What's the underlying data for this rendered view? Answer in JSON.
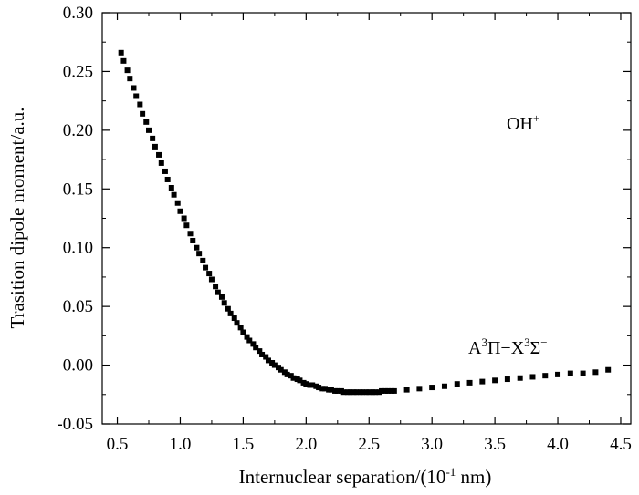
{
  "chart_data": {
    "type": "scatter",
    "xlabel": "Internuclear separation/(10",
    "xlabel_exp": "-1",
    "xlabel_unit": " nm)",
    "ylabel": "Trasition dipole moment/a.u.",
    "xlim": [
      0.38,
      4.58
    ],
    "ylim": [
      -0.05,
      0.3
    ],
    "xticks": [
      "0.5",
      "1.0",
      "1.5",
      "2.0",
      "2.5",
      "3.0",
      "3.5",
      "4.0",
      "4.5"
    ],
    "yticks": [
      "0.30",
      "0.25",
      "0.20",
      "0.15",
      "0.10",
      "0.05",
      "0.00",
      "-0.05"
    ],
    "grid": false,
    "annotations": {
      "molecule": "OH",
      "molecule_sup": "+",
      "transition": {
        "a": "A",
        "a_sup": "3",
        "pi": "Π",
        "dash": "−",
        "x": "X",
        "x_sup": "3",
        "sigma": "Σ",
        "sigma_sup": "−"
      }
    },
    "series": [
      {
        "marker": "square",
        "color": "#000000",
        "x": [
          0.53,
          0.55,
          0.58,
          0.6,
          0.63,
          0.65,
          0.68,
          0.7,
          0.73,
          0.75,
          0.78,
          0.8,
          0.83,
          0.85,
          0.88,
          0.9,
          0.93,
          0.95,
          0.98,
          1.0,
          1.03,
          1.05,
          1.08,
          1.1,
          1.13,
          1.15,
          1.18,
          1.2,
          1.23,
          1.25,
          1.28,
          1.3,
          1.33,
          1.35,
          1.38,
          1.4,
          1.43,
          1.45,
          1.48,
          1.5,
          1.53,
          1.55,
          1.58,
          1.6,
          1.63,
          1.65,
          1.68,
          1.7,
          1.73,
          1.75,
          1.78,
          1.8,
          1.83,
          1.85,
          1.88,
          1.9,
          1.93,
          1.95,
          1.98,
          2.0,
          2.03,
          2.05,
          2.08,
          2.1,
          2.13,
          2.15,
          2.18,
          2.2,
          2.23,
          2.25,
          2.28,
          2.3,
          2.33,
          2.35,
          2.38,
          2.4,
          2.43,
          2.45,
          2.48,
          2.5,
          2.53,
          2.55,
          2.58,
          2.6,
          2.63,
          2.65,
          2.68,
          2.7,
          2.8,
          2.9,
          3.0,
          3.1,
          3.2,
          3.3,
          3.4,
          3.5,
          3.6,
          3.7,
          3.8,
          3.9,
          4.0,
          4.1,
          4.2,
          4.3,
          4.4
        ],
        "y": [
          0.266,
          0.259,
          0.251,
          0.244,
          0.236,
          0.229,
          0.222,
          0.214,
          0.207,
          0.2,
          0.193,
          0.186,
          0.179,
          0.172,
          0.165,
          0.158,
          0.151,
          0.145,
          0.138,
          0.131,
          0.125,
          0.119,
          0.112,
          0.106,
          0.1,
          0.095,
          0.089,
          0.083,
          0.078,
          0.073,
          0.067,
          0.062,
          0.058,
          0.053,
          0.048,
          0.044,
          0.04,
          0.036,
          0.032,
          0.028,
          0.024,
          0.021,
          0.018,
          0.015,
          0.012,
          0.009,
          0.007,
          0.004,
          0.002,
          0.0,
          -0.002,
          -0.004,
          -0.006,
          -0.008,
          -0.009,
          -0.011,
          -0.012,
          -0.013,
          -0.015,
          -0.016,
          -0.017,
          -0.017,
          -0.018,
          -0.019,
          -0.02,
          -0.02,
          -0.021,
          -0.021,
          -0.022,
          -0.022,
          -0.022,
          -0.023,
          -0.023,
          -0.023,
          -0.023,
          -0.023,
          -0.023,
          -0.023,
          -0.023,
          -0.023,
          -0.023,
          -0.023,
          -0.023,
          -0.022,
          -0.022,
          -0.022,
          -0.022,
          -0.022,
          -0.021,
          -0.02,
          -0.019,
          -0.018,
          -0.016,
          -0.015,
          -0.014,
          -0.013,
          -0.012,
          -0.011,
          -0.01,
          -0.009,
          -0.008,
          -0.007,
          -0.007,
          -0.006,
          -0.004
        ]
      }
    ]
  }
}
